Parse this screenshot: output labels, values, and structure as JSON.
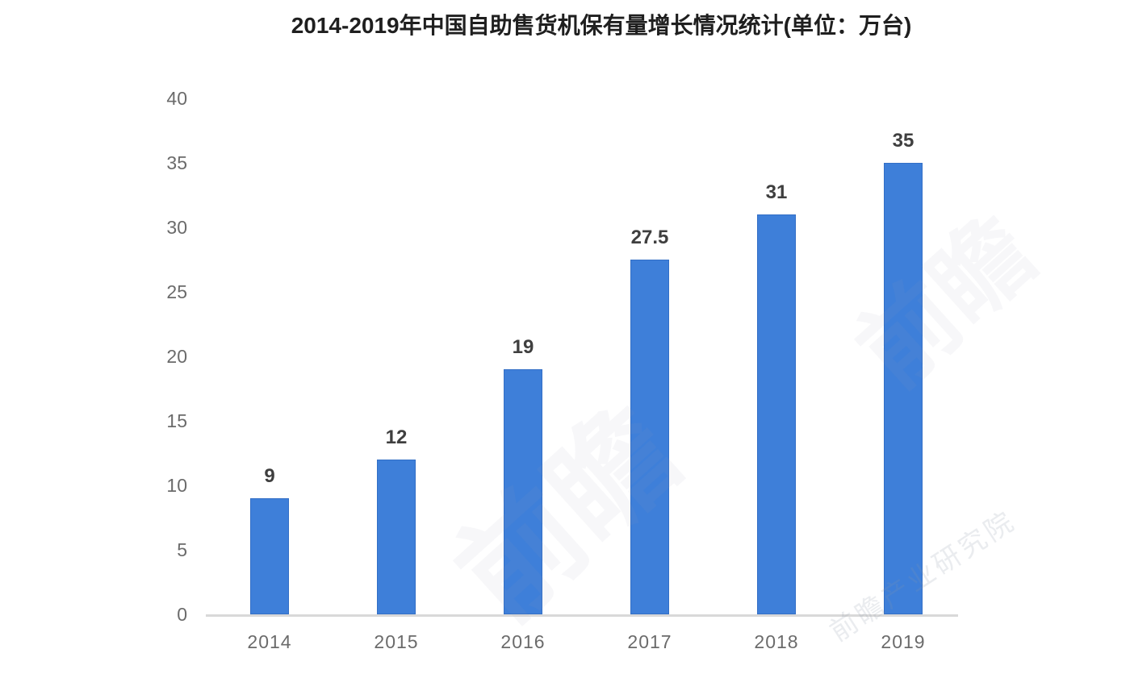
{
  "title": {
    "text": "2014-2019年中国自助售货机保有量增长情况统计(单位：万台)"
  },
  "colors": {
    "bar_fill": "#3e7fd9",
    "bar_edge": "#336fc6",
    "axis_line": "#d9d9d9",
    "ytick_label": "#6b6b6b",
    "xtick_label": "#6b6b6b",
    "data_label": "#3f3f3f",
    "title_text": "#1f1f1f",
    "watermark_faint": "rgba(150,158,178,0.08)",
    "watermark_footer": "rgba(140,148,168,0.18)"
  },
  "watermarks": [
    "前瞻",
    "前瞻",
    "前瞻产业研究院"
  ],
  "chart_data": {
    "type": "bar",
    "title": "2014-2019年中国自助售货机保有量增长情况统计(单位：万台)",
    "categories": [
      "2014",
      "2015",
      "2016",
      "2017",
      "2018",
      "2019"
    ],
    "values": [
      9,
      12,
      19,
      27.5,
      31,
      35
    ],
    "data_labels": [
      "9",
      "12",
      "19",
      "27.5",
      "31",
      "35"
    ],
    "yticks": [
      0,
      5,
      10,
      15,
      20,
      25,
      30,
      35,
      40
    ],
    "ylim": [
      0,
      40
    ],
    "unit": "万台",
    "xlabel": "",
    "ylabel": "",
    "grid": false,
    "legend": false,
    "data_label_position": "above-bar",
    "bar_color": "#3e7fd9"
  }
}
